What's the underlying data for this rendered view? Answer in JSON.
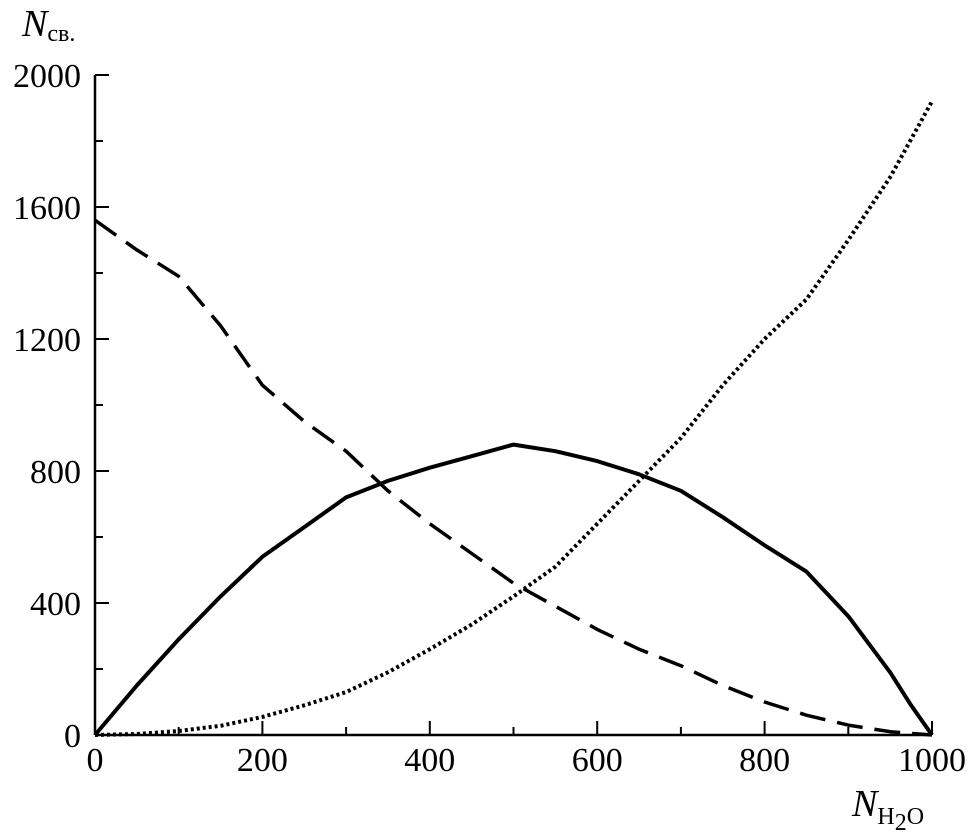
{
  "chart_data": {
    "type": "line",
    "xlabel": {
      "main": "N",
      "sub_lead": "H",
      "sub_digit": "2",
      "sub_tail": "O"
    },
    "ylabel": {
      "main": "N",
      "sub": "св."
    },
    "xlim": [
      0,
      1000
    ],
    "ylim": [
      0,
      2000
    ],
    "x_ticks": [
      0,
      200,
      400,
      600,
      800,
      1000
    ],
    "y_ticks": [
      0,
      400,
      800,
      1200,
      1600,
      2000
    ],
    "y_minor_ticks": [
      200,
      600,
      1000,
      1400,
      1800
    ],
    "x_minor_ticks": [
      100,
      300,
      500,
      700,
      900
    ],
    "grid": false,
    "legend": "none",
    "series": [
      {
        "style": "solid",
        "points": [
          [
            0,
            0
          ],
          [
            50,
            150
          ],
          [
            100,
            290
          ],
          [
            150,
            420
          ],
          [
            200,
            540
          ],
          [
            250,
            630
          ],
          [
            300,
            720
          ],
          [
            350,
            770
          ],
          [
            400,
            810
          ],
          [
            450,
            845
          ],
          [
            500,
            880
          ],
          [
            550,
            860
          ],
          [
            600,
            830
          ],
          [
            650,
            790
          ],
          [
            700,
            740
          ],
          [
            750,
            660
          ],
          [
            800,
            575
          ],
          [
            850,
            495
          ],
          [
            900,
            360
          ],
          [
            950,
            190
          ],
          [
            975,
            90
          ],
          [
            1000,
            0
          ]
        ]
      },
      {
        "style": "dashed",
        "points": [
          [
            0,
            1560
          ],
          [
            50,
            1470
          ],
          [
            100,
            1390
          ],
          [
            150,
            1240
          ],
          [
            200,
            1060
          ],
          [
            250,
            950
          ],
          [
            300,
            860
          ],
          [
            350,
            740
          ],
          [
            400,
            640
          ],
          [
            450,
            550
          ],
          [
            500,
            460
          ],
          [
            550,
            390
          ],
          [
            600,
            320
          ],
          [
            650,
            260
          ],
          [
            700,
            210
          ],
          [
            750,
            150
          ],
          [
            800,
            100
          ],
          [
            850,
            60
          ],
          [
            900,
            30
          ],
          [
            950,
            10
          ],
          [
            1000,
            0
          ]
        ]
      },
      {
        "style": "dotted",
        "points": [
          [
            0,
            0
          ],
          [
            50,
            3
          ],
          [
            100,
            12
          ],
          [
            150,
            28
          ],
          [
            200,
            55
          ],
          [
            250,
            90
          ],
          [
            300,
            130
          ],
          [
            350,
            190
          ],
          [
            400,
            260
          ],
          [
            450,
            335
          ],
          [
            500,
            420
          ],
          [
            550,
            510
          ],
          [
            600,
            640
          ],
          [
            650,
            770
          ],
          [
            700,
            900
          ],
          [
            750,
            1060
          ],
          [
            800,
            1200
          ],
          [
            850,
            1320
          ],
          [
            900,
            1500
          ],
          [
            950,
            1690
          ],
          [
            1000,
            1920
          ]
        ]
      }
    ]
  }
}
